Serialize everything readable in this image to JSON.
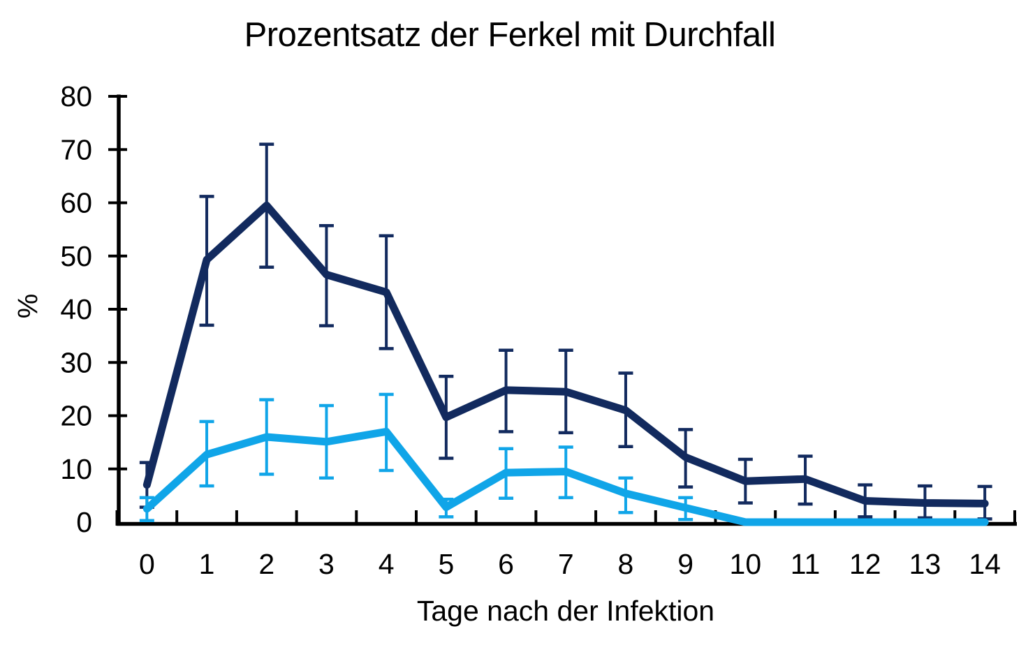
{
  "chart_data": {
    "type": "line",
    "title": "Prozentsatz der Ferkel mit Durchfall",
    "xlabel": "Tage nach der Infektion",
    "ylabel": "%",
    "x": [
      0,
      1,
      2,
      3,
      4,
      5,
      6,
      7,
      8,
      9,
      10,
      11,
      12,
      13,
      14
    ],
    "yticks": [
      0,
      10,
      20,
      30,
      40,
      50,
      60,
      70,
      80
    ],
    "ylim": [
      0,
      80
    ],
    "grid": false,
    "legend": "none",
    "error_bars": true,
    "series": [
      {
        "name": "series-dark-blue",
        "color": "#122A5E",
        "values": [
          7,
          49.3,
          59.5,
          46.5,
          43.2,
          19.7,
          24.8,
          24.5,
          21,
          12.2,
          7.7,
          8.1,
          4,
          3.6,
          3.5
        ],
        "err_low": [
          2.8,
          37,
          47.9,
          36.9,
          32.6,
          12,
          17,
          16.8,
          14.2,
          6.6,
          3.6,
          3.4,
          1,
          0.8,
          0.6
        ],
        "err_high": [
          11.2,
          61.2,
          71,
          55.7,
          53.8,
          27.4,
          32.3,
          32.3,
          28,
          17.4,
          11.8,
          12.4,
          7,
          6.8,
          6.7
        ]
      },
      {
        "name": "series-light-blue",
        "color": "#10A5E8",
        "values": [
          2.5,
          12.7,
          16,
          15.1,
          17,
          2.8,
          9.3,
          9.5,
          5.4,
          2.7,
          0,
          0,
          0,
          0,
          0
        ],
        "err_low": [
          0.3,
          6.8,
          9,
          8.3,
          9.7,
          1,
          4.5,
          4.6,
          1.8,
          0.5,
          null,
          null,
          null,
          null,
          null
        ],
        "err_high": [
          4.6,
          18.9,
          23,
          21.9,
          24,
          4.3,
          13.8,
          14.1,
          8.3,
          4.6,
          null,
          null,
          null,
          null,
          null
        ]
      }
    ]
  }
}
